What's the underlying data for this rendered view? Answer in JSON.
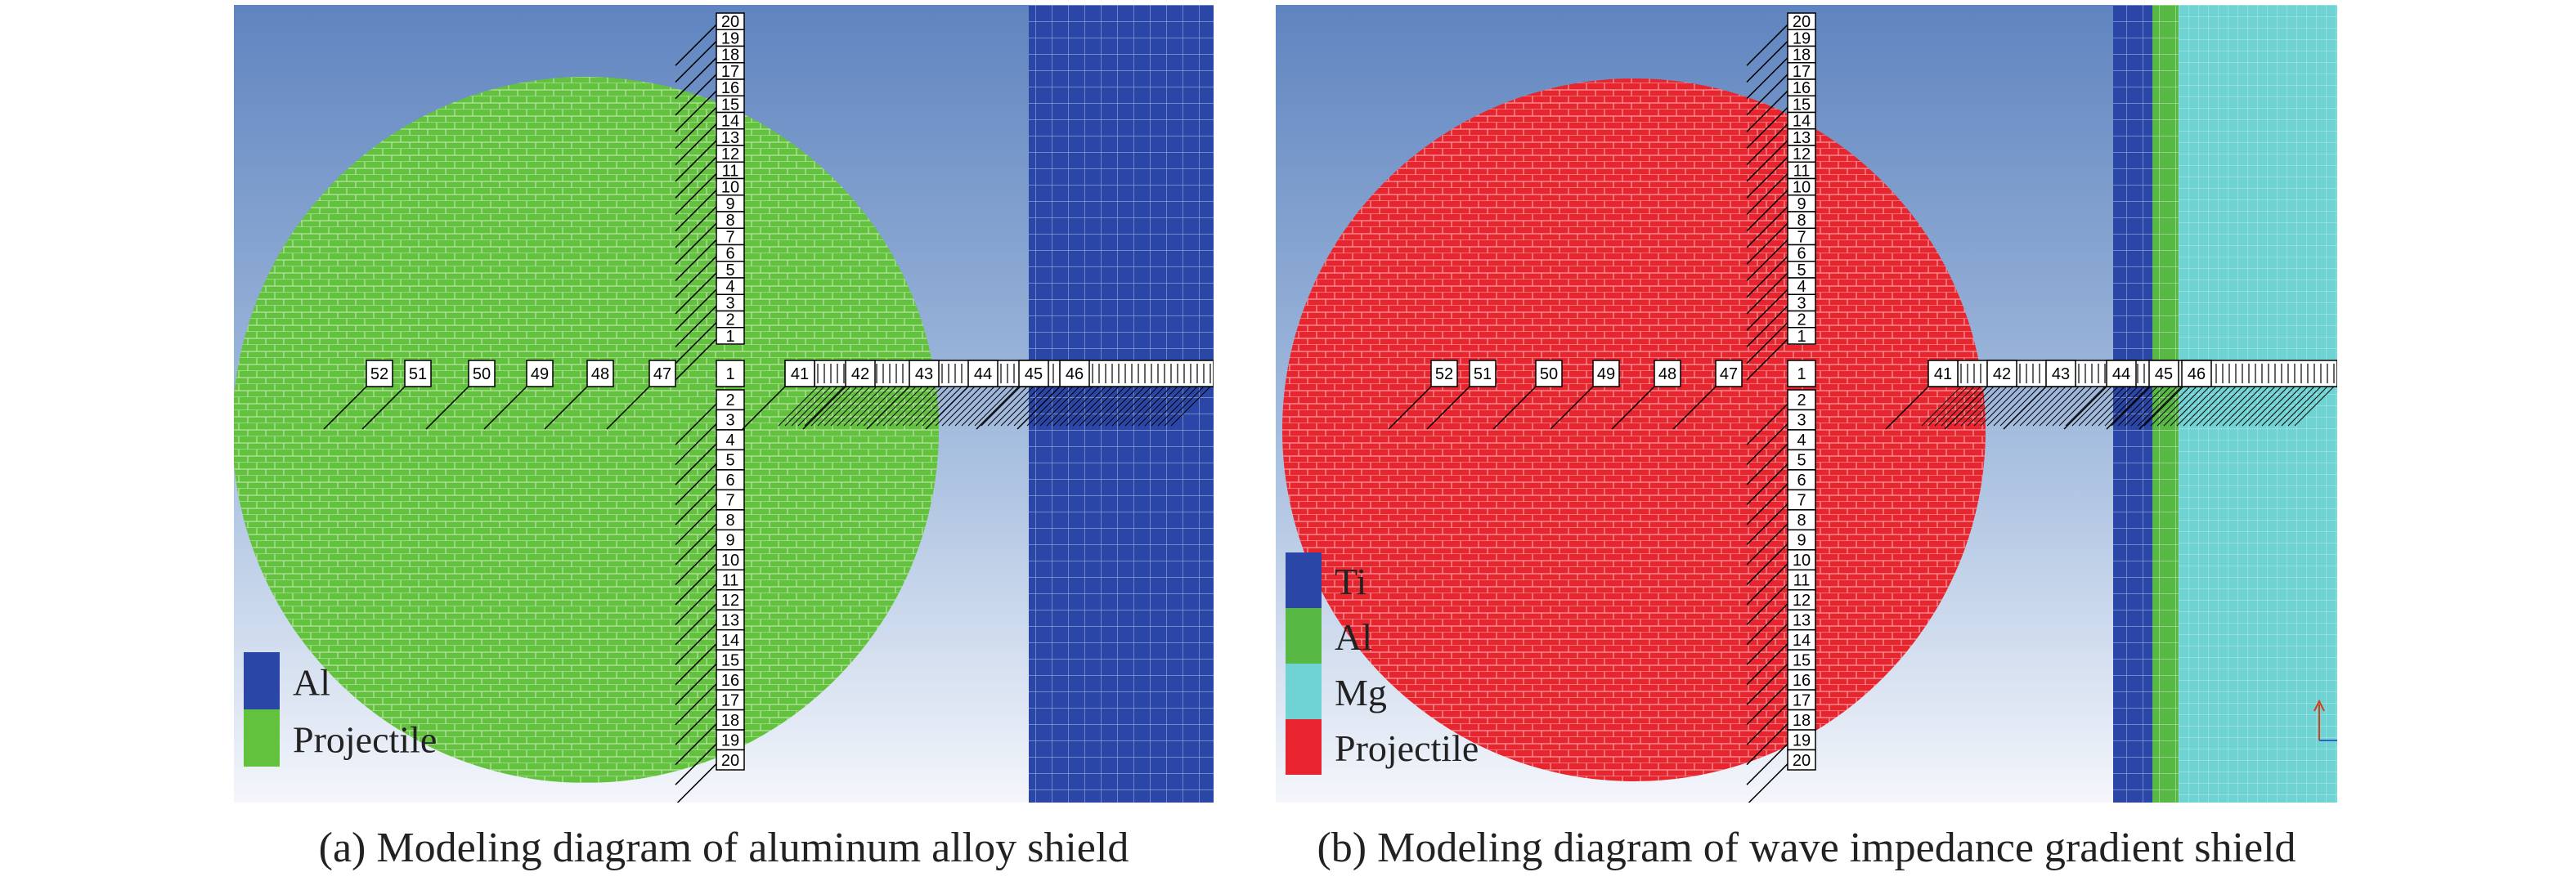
{
  "panels": [
    {
      "id": "a",
      "caption": "(a) Modeling diagram of aluminum alloy shield",
      "colors": {
        "projectile": "#63c23d",
        "plate": "#2a47a8"
      },
      "layers": [
        {
          "material": "Al",
          "color": "#2a47a8"
        }
      ],
      "legend": [
        {
          "name": "Al",
          "color": "#2a47a8"
        },
        {
          "name": "Projectile",
          "color": "#63c23d"
        }
      ],
      "vertical_gauges_top": [
        "20",
        "19",
        "18",
        "17",
        "16",
        "15",
        "14",
        "13",
        "12",
        "11",
        "10",
        "9",
        "8",
        "7",
        "6",
        "5",
        "4",
        "3",
        "2",
        "1"
      ],
      "vertical_gauges_bottom": [
        "2",
        "3",
        "4",
        "5",
        "6",
        "7",
        "8",
        "9",
        "10",
        "11",
        "12",
        "13",
        "14",
        "15",
        "16",
        "17",
        "18",
        "19",
        "20"
      ],
      "horizontal_gauges_left": [
        "52",
        "51",
        "50",
        "49",
        "48",
        "47"
      ],
      "horizontal_gauges_right": [
        "41",
        "42",
        "43",
        "44",
        "45",
        "46"
      ]
    },
    {
      "id": "b",
      "caption": "(b) Modeling diagram of wave impedance gradient shield",
      "colors": {
        "projectile": "#e8252e"
      },
      "layers": [
        {
          "material": "Ti",
          "color": "#2a47a8"
        },
        {
          "material": "Al",
          "color": "#58b844"
        },
        {
          "material": "Mg",
          "color": "#6fd3d3"
        }
      ],
      "legend": [
        {
          "name": "Ti",
          "color": "#2a47a8"
        },
        {
          "name": "Al",
          "color": "#58b844"
        },
        {
          "name": "Mg",
          "color": "#6fd3d3"
        },
        {
          "name": "Projectile",
          "color": "#e8252e"
        }
      ],
      "vertical_gauges_top": [
        "20",
        "19",
        "18",
        "17",
        "16",
        "15",
        "14",
        "13",
        "12",
        "11",
        "10",
        "9",
        "8",
        "7",
        "6",
        "5",
        "4",
        "3",
        "2",
        "1"
      ],
      "vertical_gauges_bottom": [
        "2",
        "3",
        "4",
        "5",
        "6",
        "7",
        "8",
        "9",
        "10",
        "11",
        "12",
        "13",
        "14",
        "15",
        "16",
        "17",
        "18",
        "19",
        "20"
      ],
      "horizontal_gauges_left": [
        "52",
        "51",
        "50",
        "49",
        "48",
        "47"
      ],
      "horizontal_gauges_right": [
        "41",
        "42",
        "43",
        "44",
        "45",
        "46"
      ]
    }
  ]
}
